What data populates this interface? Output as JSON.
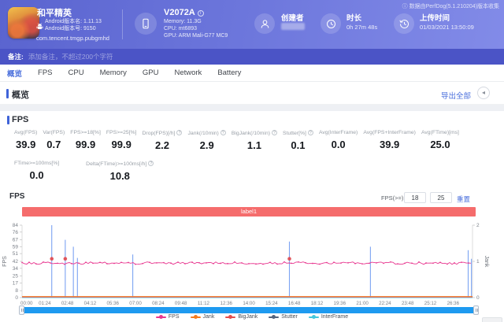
{
  "header": {
    "note": "ⓘ 数据由PerfDog(5.1.210204)版本收集",
    "app": {
      "name": "和平精英",
      "version_name": "Android版本名: 1.11.13",
      "version_code": "Android版本号: 9150",
      "package": "com.tencent.tmgp.pubgmhd"
    },
    "device": {
      "model": "V2072A",
      "memory": "Memory: 11.3G",
      "cpu": "CPU: mt6893",
      "gpu": "GPU: ARM Mali-G77 MC9"
    },
    "creator": {
      "label": "创建者"
    },
    "duration": {
      "label": "时长",
      "value": "0h 27m 48s"
    },
    "upload": {
      "label": "上传时间",
      "value": "01/03/2021 13:50:09"
    }
  },
  "remark": {
    "label": "备注:",
    "placeholder": "添加备注，不超过200个字符"
  },
  "tabs": [
    {
      "label": "概览",
      "active": true
    },
    {
      "label": "FPS",
      "active": false
    },
    {
      "label": "CPU",
      "active": false
    },
    {
      "label": "Memory",
      "active": false
    },
    {
      "label": "GPU",
      "active": false
    },
    {
      "label": "Network",
      "active": false
    },
    {
      "label": "Battery",
      "active": false
    }
  ],
  "overview": {
    "title": "概览",
    "export_label": "导出全部",
    "collapse_glyph": "◂"
  },
  "icons": {
    "info_glyph": "?"
  },
  "fps_section": {
    "title": "FPS",
    "stats_row1": [
      {
        "label": "Avg(FPS)",
        "value": "39.9"
      },
      {
        "label": "Var(FPS)",
        "value": "0.7"
      },
      {
        "label": "FPS>=18[%]",
        "value": "99.9"
      },
      {
        "label": "FPS>=25[%]",
        "value": "99.9"
      },
      {
        "label": "Drop(FPS)[/h]",
        "value": "2.2",
        "info": true
      },
      {
        "label": "Jank(/10min)",
        "value": "2.9",
        "info": true
      },
      {
        "label": "BigJank(/10min)",
        "value": "1.1",
        "info": true
      },
      {
        "label": "Stutter[%]",
        "value": "0.1",
        "info": true
      },
      {
        "label": "Avg(InterFrame)",
        "value": "0.0"
      },
      {
        "label": "Avg(FPS+InterFrame)",
        "value": "39.9"
      },
      {
        "label": "Avg(FTime)[ms]",
        "value": "25.0"
      }
    ],
    "stats_row2": [
      {
        "label": "FTime>=100ms[%]",
        "value": "0.0"
      },
      {
        "label": "Delta(FTime)>=100ms[/h]",
        "value": "10.8",
        "info": true
      }
    ]
  },
  "chart": {
    "title": "FPS",
    "threshold_label": "FPS(>=)",
    "threshold_values": [
      "18",
      "25"
    ],
    "reset_label": "重置",
    "region_label": "label1"
  },
  "chart_data": {
    "type": "line",
    "title": "FPS",
    "duration_seconds": 1668,
    "x_ticks": [
      "00:00",
      "01:24",
      "02:48",
      "04:12",
      "05:36",
      "07:00",
      "08:24",
      "09:48",
      "11:12",
      "12:36",
      "14:00",
      "15:24",
      "16:48",
      "18:12",
      "19:36",
      "21:00",
      "22:24",
      "23:48",
      "25:12",
      "26:36"
    ],
    "left_axis": {
      "label": "FPS",
      "range": [
        0,
        84
      ],
      "ticks": [
        0,
        8,
        17,
        25,
        34,
        42,
        51,
        59,
        67,
        76,
        84
      ]
    },
    "right_axis": {
      "label": "Jank",
      "range": [
        0,
        2
      ],
      "ticks": [
        0,
        1,
        2
      ]
    },
    "fps_series": {
      "name": "FPS",
      "color": "#e8368f",
      "baseline_fps": 40,
      "noise_fps": 1.4,
      "seed": 1234567
    },
    "baseline_series": [
      {
        "name": "Jank",
        "color": "#f57c1f",
        "value": 0,
        "axis": "right"
      },
      {
        "name": "BigJank",
        "color": "#e34d4d",
        "value": 0,
        "axis": "right"
      },
      {
        "name": "InterFrame",
        "color": "#45c8dc",
        "value": 0,
        "axis": "left"
      }
    ],
    "stutter_spikes": {
      "color": "#7ba3f2",
      "events": [
        {
          "time": "01:50",
          "peak_fps": 84
        },
        {
          "time": "02:40",
          "peak_fps": 67
        },
        {
          "time": "03:10",
          "peak_fps": 59
        },
        {
          "time": "03:25",
          "peak_fps": 46
        },
        {
          "time": "06:50",
          "peak_fps": 50
        },
        {
          "time": "16:30",
          "peak_fps": 65
        },
        {
          "time": "21:30",
          "peak_fps": 59
        },
        {
          "time": "27:32",
          "peak_fps": 55
        },
        {
          "time": "27:44",
          "peak_fps": 45
        }
      ]
    },
    "bigjank_markers": [
      {
        "time": "01:50",
        "fps": 45
      },
      {
        "time": "02:40",
        "fps": 45
      },
      {
        "time": "16:30",
        "fps": 45
      }
    ],
    "legend": [
      {
        "name": "FPS",
        "color": "#e8368f"
      },
      {
        "name": "Jank",
        "color": "#f57c1f"
      },
      {
        "name": "BigJank",
        "color": "#e34d4d"
      },
      {
        "name": "Stutter",
        "color": "#54657e"
      },
      {
        "name": "InterFrame",
        "color": "#45c8dc"
      }
    ]
  }
}
